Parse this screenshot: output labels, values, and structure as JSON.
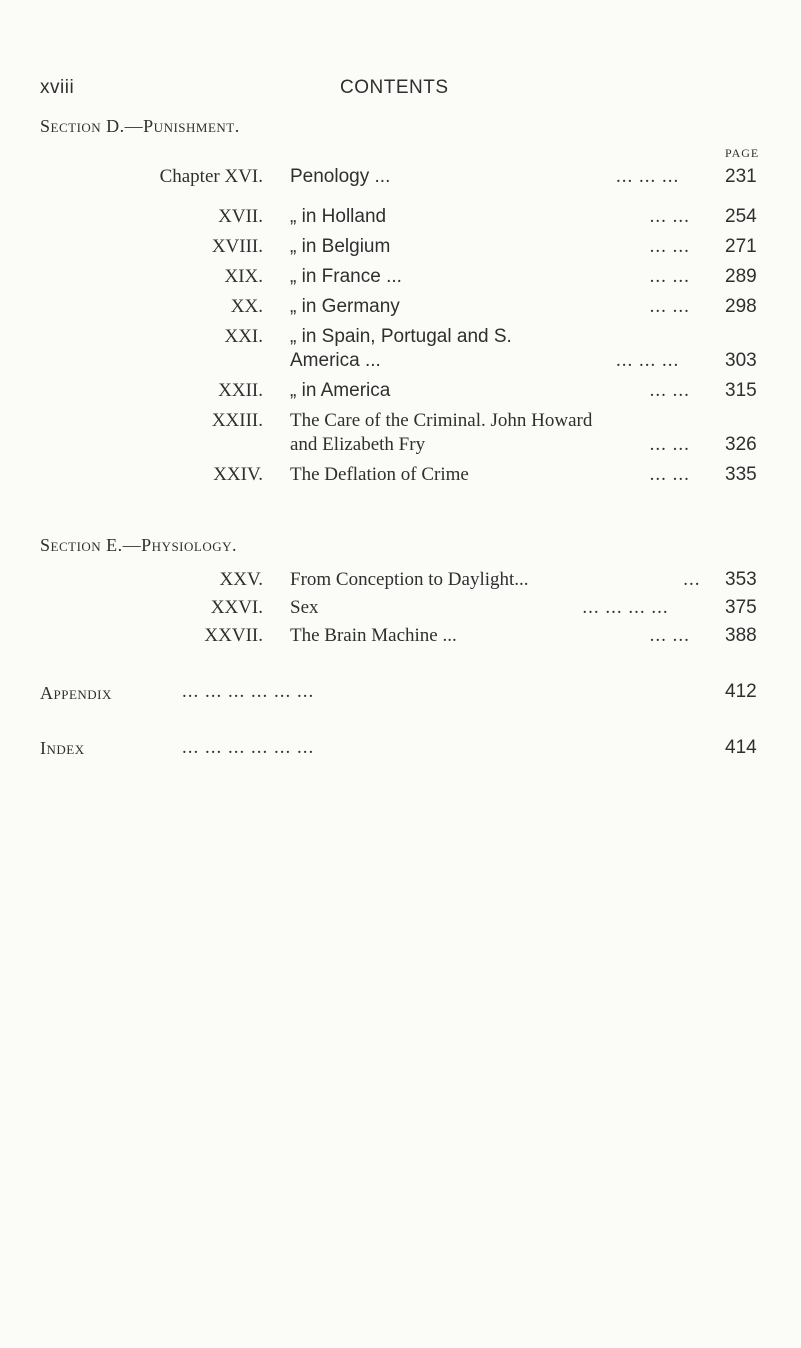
{
  "header": {
    "page_number": "xviii",
    "title": "CONTENTS"
  },
  "page_label": "PAGE",
  "sections": [
    {
      "heading": "Section D.—Punishment.",
      "entries": [
        {
          "chapter": "Chapter XVI.",
          "title": "Penology ...",
          "dots": "...   ...   ...",
          "page": "231"
        },
        {
          "chapter": "XVII.",
          "title": "„    in Holland",
          "dots": "...   ...",
          "page": "254"
        },
        {
          "chapter": "XVIII.",
          "title": "„    in Belgium",
          "dots": "...   ...",
          "page": "271"
        },
        {
          "chapter": "XIX.",
          "title": "„    in France ...",
          "dots": "...   ...",
          "page": "289"
        },
        {
          "chapter": "XX.",
          "title": "„    in Germany",
          "dots": "...   ...",
          "page": "298"
        },
        {
          "chapter": "XXI.",
          "title": "„    in Spain, Portugal and S.",
          "title2": "America ...",
          "dots": "...   ...   ...",
          "page": "303"
        },
        {
          "chapter": "XXII.",
          "title": "„    in America",
          "dots": "...   ...",
          "page": "315"
        },
        {
          "chapter": "XXIII.",
          "title": "The Care of the Criminal. John Howard",
          "title2": "and Elizabeth Fry",
          "dots": "...   ...",
          "page": "326"
        },
        {
          "chapter": "XXIV.",
          "title": "The Deflation of Crime",
          "dots": "...   ...",
          "page": "335"
        }
      ]
    },
    {
      "heading": "Section E.—Physiology.",
      "entries": [
        {
          "chapter": "XXV.",
          "title": "From Conception to Daylight...",
          "dots": "...",
          "page": "353"
        },
        {
          "chapter": "XXVI.",
          "title": "Sex",
          "dots": "...   ...   ...   ...",
          "page": "375"
        },
        {
          "chapter": "XXVII.",
          "title": "The Brain Machine ...",
          "dots": "...   ...",
          "page": "388"
        }
      ]
    }
  ],
  "back_matter": [
    {
      "label": "Appendix",
      "dots": "...    ...    ...    ...    ...    ...",
      "page": "412"
    },
    {
      "label": "Index",
      "dots": "...    ...    ...    ...    ...    ...",
      "page": "414"
    }
  ]
}
